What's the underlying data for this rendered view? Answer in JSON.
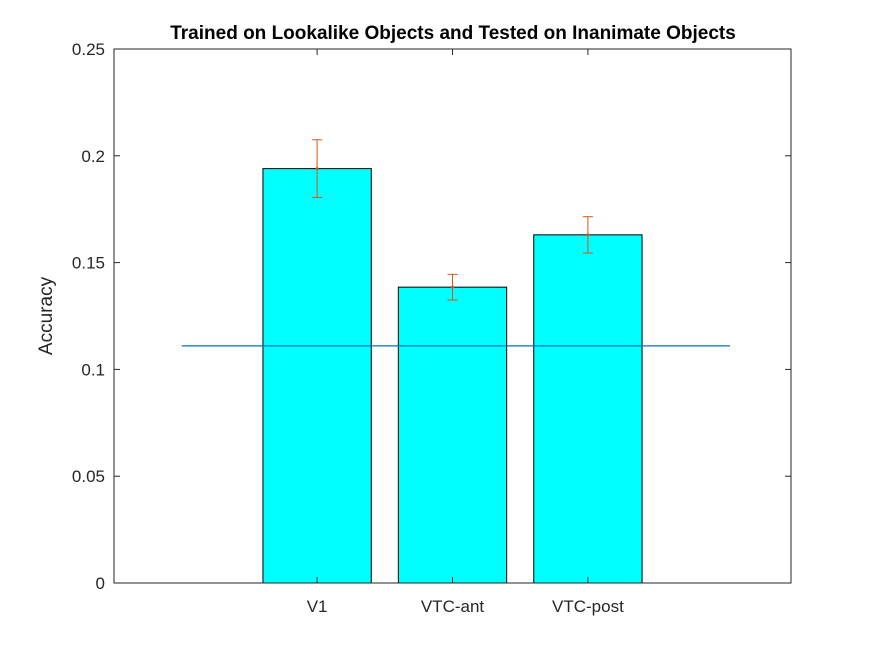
{
  "chart_data": {
    "type": "bar",
    "title": "Trained on Lookalike Objects and Tested on Inanimate Objects",
    "xlabel": "",
    "ylabel": "Accuracy",
    "categories": [
      "V1",
      "VTC-ant",
      "VTC-post"
    ],
    "values": [
      0.194,
      0.1385,
      0.163
    ],
    "error_low": [
      0.1805,
      0.1325,
      0.1545
    ],
    "error_high": [
      0.2075,
      0.1445,
      0.1715
    ],
    "reference_line": 0.111,
    "ylim": [
      0,
      0.25
    ],
    "yticks": [
      0,
      0.05,
      0.1,
      0.15,
      0.2,
      0.25
    ],
    "ytick_labels": [
      "0",
      "0.05",
      "0.1",
      "0.15",
      "0.2",
      "0.25"
    ],
    "grid": false,
    "colors": {
      "bar": "#00ffff",
      "bar_edge": "#000000",
      "error": "#d95319",
      "reference": "#0072bd",
      "axis": "#262626"
    }
  }
}
